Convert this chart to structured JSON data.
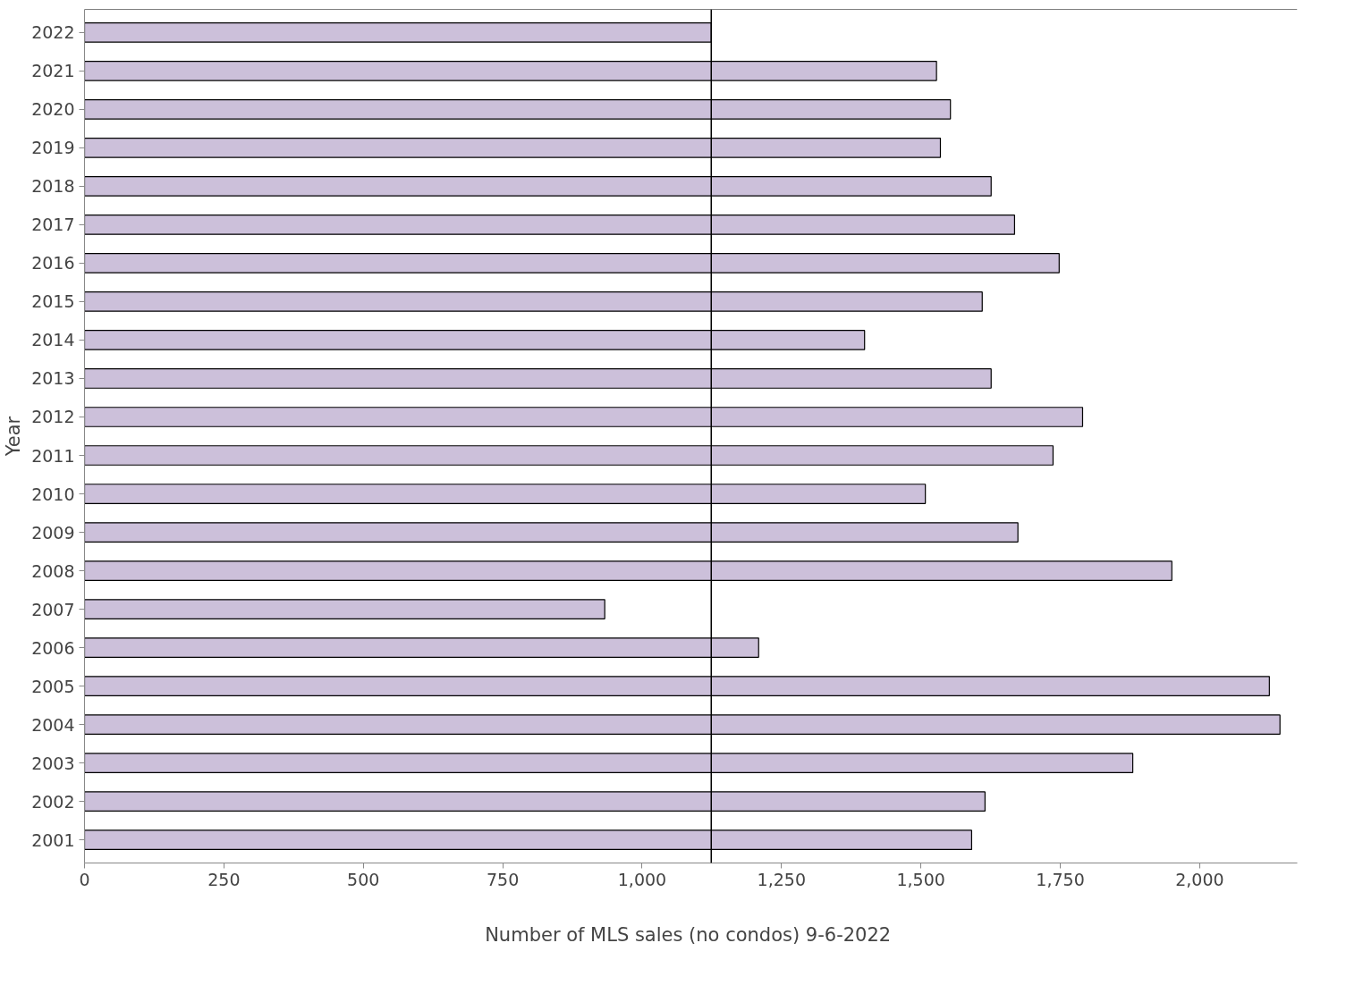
{
  "chart_data": {
    "type": "bar",
    "orientation": "horizontal",
    "xlabel": "Number  of MLS sales (no condos) 9-6-2022",
    "ylabel": "Year",
    "categories": [
      "2022",
      "2021",
      "2020",
      "2019",
      "2018",
      "2017",
      "2016",
      "2015",
      "2014",
      "2013",
      "2012",
      "2011",
      "2010",
      "2009",
      "2008",
      "2007",
      "2006",
      "2005",
      "2004",
      "2003",
      "2002",
      "2001"
    ],
    "values": [
      1124,
      1528,
      1553,
      1535,
      1626,
      1668,
      1748,
      1610,
      1399,
      1626,
      1790,
      1737,
      1508,
      1674,
      1950,
      933,
      1209,
      2125,
      2144,
      1880,
      1615,
      1591
    ],
    "color": "#ccc0da",
    "xlim": [
      0,
      2175
    ],
    "xticks": [
      0,
      250,
      500,
      750,
      {
        "value": 1000,
        "label": "1,000"
      },
      {
        "value": 1250,
        "label": "1,250"
      },
      {
        "value": 1500,
        "label": "1,500"
      },
      {
        "value": 1750,
        "label": "1,750"
      },
      {
        "value": 2000,
        "label": "2,000"
      }
    ],
    "ref_lines": [
      {
        "axis": "x",
        "value": 1124,
        "label": null,
        "color": "#000000"
      }
    ],
    "grid": false
  }
}
